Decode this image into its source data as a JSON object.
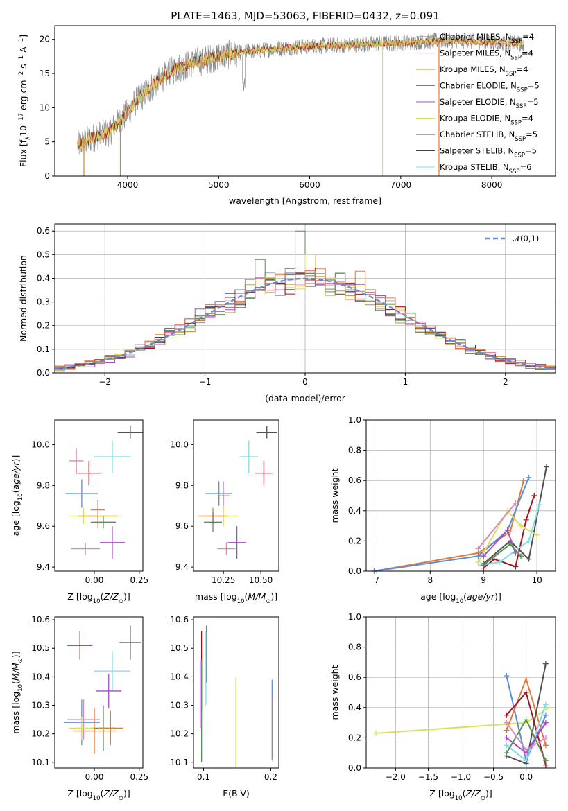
{
  "figure_title": "PLATE=1463, MJD=53063, FIBERID=0432, z=0.091",
  "colors": {
    "Chabrier MILES": "#7f7f7f",
    "Salpeter MILES": "#d98ab5",
    "Kroupa MILES": "#c48a2c",
    "Chabrier ELODIE": "#5a8f5a",
    "Salpeter ELODIE": "#a54ac7",
    "Kroupa ELODIE": "#d8e060",
    "Chabrier STELIB": "#505050",
    "Salpeter STELIB": "#a01420",
    "Kroupa STELIB": "#7fdde6"
  },
  "legend_models": [
    "Chabrier MILES, N_SSP=4",
    "Salpeter MILES, N_SSP=4",
    "Kroupa MILES, N_SSP=4",
    "Chabrier ELODIE, N_SSP=5",
    "Salpeter ELODIE, N_SSP=5",
    "Kroupa ELODIE, N_SSP=4",
    "Chabrier STELIB, N_SSP=5",
    "Salpeter STELIB, N_SSP=5",
    "Kroupa STELIB, N_SSP=6"
  ],
  "chart_data": [
    {
      "type": "line",
      "panel": "spectrum",
      "xlabel": "wavelength [Angstrom, rest frame]",
      "ylabel": "Flux [f_λ 10^-17 erg cm^-2 s^-1 A^-1]",
      "xlim": [
        3200,
        8700
      ],
      "ylim": [
        0,
        22
      ],
      "xticks": [
        4000,
        5000,
        6000,
        7000,
        8000
      ],
      "yticks": [
        0,
        5,
        10,
        15,
        20
      ],
      "legend": [
        "Chabrier MILES, N_SSP=4",
        "Salpeter MILES, N_SSP=4",
        "Kroupa MILES, N_SSP=4",
        "Chabrier ELODIE, N_SSP=5",
        "Salpeter ELODIE, N_SSP=5",
        "Kroupa ELODIE, N_SSP=4",
        "Chabrier STELIB, N_SSP=5",
        "Salpeter STELIB, N_SSP=5",
        "Kroupa STELIB, N_SSP=6"
      ],
      "legend_position": "right",
      "continuum": {
        "x": [
          3450,
          3600,
          3800,
          3950,
          4100,
          4300,
          4500,
          4700,
          5000,
          5300,
          5600,
          6000,
          6500,
          7000,
          7500,
          8000,
          8350
        ],
        "y": [
          4.5,
          5.5,
          6.5,
          8.5,
          11,
          13.5,
          15.5,
          16.5,
          17.5,
          18.2,
          18.6,
          19.0,
          19.2,
          19.5,
          19.8,
          19.6,
          19.3
        ]
      },
      "drops": [
        {
          "x": 3520,
          "color": "#c48a2c"
        },
        {
          "x": 3920,
          "color": "#c48a2c"
        },
        {
          "x": 6800,
          "color": "#d8e060"
        },
        {
          "x": 7420,
          "color": "#e07a3a"
        }
      ]
    },
    {
      "type": "step",
      "panel": "residual_histogram",
      "xlabel": "(data-model)/error",
      "ylabel": "Normed distribution",
      "xlim": [
        -2.5,
        2.5
      ],
      "ylim": [
        0,
        0.63
      ],
      "xticks": [
        -2,
        -1,
        0,
        1,
        2
      ],
      "yticks": [
        0.0,
        0.1,
        0.2,
        0.3,
        0.4,
        0.5,
        0.6
      ],
      "grid": true,
      "reference_curve": {
        "name": "N(0,1)",
        "label": "𝒩(0,1)",
        "mean": 0,
        "sigma": 1,
        "style": "dashed",
        "color": "#5b8ed6"
      },
      "bin_width": 0.1,
      "peaks": [
        {
          "x": -0.05,
          "y": 0.6,
          "color": "#5a8f5a"
        },
        {
          "x": 0.05,
          "y": 0.5,
          "color": "#d8e060"
        },
        {
          "x": 0.55,
          "y": 0.43,
          "color": "#e07a3a"
        },
        {
          "x": -0.45,
          "y": 0.48,
          "color": "#5a8f5a"
        }
      ]
    },
    {
      "type": "errorbar",
      "panel": "Z_vs_age",
      "xlabel": "Z [log10(Z/Z⊙)]",
      "ylabel": "age  [log10(age/yr)]",
      "xlim": [
        -0.22,
        0.27
      ],
      "ylim": [
        9.38,
        10.12
      ],
      "xticks": [
        0.0,
        0.25
      ],
      "yticks": [
        9.4,
        9.6,
        9.8,
        10.0
      ],
      "points": [
        {
          "x": 0.2,
          "y": 10.06,
          "xerr": 0.07,
          "yerr": 0.03,
          "color": "#505050"
        },
        {
          "x": 0.1,
          "y": 9.94,
          "xerr": 0.1,
          "yerr": 0.08,
          "color": "#7fdde6"
        },
        {
          "x": -0.1,
          "y": 9.92,
          "xerr": 0.04,
          "yerr": 0.06,
          "color": "#d98ab5"
        },
        {
          "x": -0.03,
          "y": 9.86,
          "xerr": 0.07,
          "yerr": 0.06,
          "color": "#a01420"
        },
        {
          "x": -0.07,
          "y": 9.76,
          "xerr": 0.09,
          "yerr": 0.07,
          "color": "#5b8ed6"
        },
        {
          "x": 0.02,
          "y": 9.68,
          "xerr": 0.04,
          "yerr": 0.05,
          "color": "#e07a3a"
        },
        {
          "x": -0.06,
          "y": 9.65,
          "xerr": 0.08,
          "yerr": 0.04,
          "color": "#d8e060"
        },
        {
          "x": 0.02,
          "y": 9.65,
          "xerr": 0.11,
          "yerr": 0.06,
          "color": "#c48a2c"
        },
        {
          "x": 0.05,
          "y": 9.62,
          "xerr": 0.07,
          "yerr": 0.03,
          "color": "#5a8f5a"
        },
        {
          "x": 0.1,
          "y": 9.52,
          "xerr": 0.07,
          "yerr": 0.08,
          "color": "#a54ac7"
        },
        {
          "x": -0.05,
          "y": 9.49,
          "xerr": 0.08,
          "yerr": 0.03,
          "color": "#d98ab5"
        }
      ]
    },
    {
      "type": "errorbar",
      "panel": "mass_vs_age",
      "xlabel": "mass [log10(M/M⊙)]",
      "ylabel": "",
      "xlim": [
        10.05,
        10.62
      ],
      "ylim": [
        9.38,
        10.12
      ],
      "xticks": [
        10.25,
        10.5
      ],
      "yticks": [
        9.4,
        9.6,
        9.8,
        10.0
      ],
      "points": [
        {
          "x": 10.54,
          "y": 10.06,
          "xerr": 0.07,
          "yerr": 0.03,
          "color": "#505050"
        },
        {
          "x": 10.42,
          "y": 9.94,
          "xerr": 0.06,
          "yerr": 0.08,
          "color": "#7fdde6"
        },
        {
          "x": 10.52,
          "y": 9.86,
          "xerr": 0.06,
          "yerr": 0.06,
          "color": "#a01420"
        },
        {
          "x": 10.22,
          "y": 9.76,
          "xerr": 0.09,
          "yerr": 0.06,
          "color": "#5b8ed6"
        },
        {
          "x": 10.25,
          "y": 9.75,
          "xerr": 0.04,
          "yerr": 0.07,
          "color": "#d98ab5"
        },
        {
          "x": 10.25,
          "y": 9.65,
          "xerr": 0.1,
          "yerr": 0.05,
          "color": "#d8e060"
        },
        {
          "x": 10.18,
          "y": 9.65,
          "xerr": 0.1,
          "yerr": 0.04,
          "color": "#e07a3a"
        },
        {
          "x": 10.18,
          "y": 9.62,
          "xerr": 0.06,
          "yerr": 0.05,
          "color": "#5a8f5a"
        },
        {
          "x": 10.34,
          "y": 9.52,
          "xerr": 0.06,
          "yerr": 0.08,
          "color": "#a54ac7"
        },
        {
          "x": 10.27,
          "y": 9.49,
          "xerr": 0.06,
          "yerr": 0.03,
          "color": "#d98ab5"
        }
      ]
    },
    {
      "type": "line",
      "panel": "age_vs_mass_weight",
      "xlabel": "age  [log10(age/yr)]",
      "ylabel": "mass weight",
      "xlim": [
        6.8,
        10.35
      ],
      "ylim": [
        0,
        1
      ],
      "xticks": [
        7,
        8,
        9,
        10
      ],
      "yticks": [
        0.0,
        0.2,
        0.4,
        0.6,
        0.8,
        1.0
      ],
      "grid": true,
      "series": [
        {
          "color": "#e07a3a",
          "x": [
            6.95,
            8.9,
            9.5,
            9.75
          ],
          "y": [
            0.0,
            0.12,
            0.26,
            0.6
          ]
        },
        {
          "color": "#5b8ed6",
          "x": [
            6.95,
            8.9,
            9.45,
            9.85
          ],
          "y": [
            0.0,
            0.1,
            0.27,
            0.62
          ]
        },
        {
          "color": "#505050",
          "x": [
            9.0,
            9.5,
            9.85,
            10.18
          ],
          "y": [
            0.05,
            0.2,
            0.08,
            0.69
          ]
        },
        {
          "color": "#a01420",
          "x": [
            9.0,
            9.2,
            9.6,
            9.8,
            9.95
          ],
          "y": [
            0.02,
            0.08,
            0.03,
            0.34,
            0.5
          ]
        },
        {
          "color": "#d8e060",
          "x": [
            8.9,
            9.45,
            9.7,
            10.0
          ],
          "y": [
            0.06,
            0.4,
            0.3,
            0.24
          ]
        },
        {
          "color": "#7fdde6",
          "x": [
            8.95,
            9.3,
            9.85,
            10.05
          ],
          "y": [
            0.04,
            0.06,
            0.2,
            0.44
          ]
        },
        {
          "color": "#a54ac7",
          "x": [
            9.0,
            9.45,
            9.6
          ],
          "y": [
            0.1,
            0.27,
            0.12
          ]
        },
        {
          "color": "#5a8f5a",
          "x": [
            9.0,
            9.5,
            9.7
          ],
          "y": [
            0.04,
            0.18,
            0.1
          ]
        },
        {
          "color": "#d98ab5",
          "x": [
            8.9,
            9.6
          ],
          "y": [
            0.15,
            0.45
          ]
        }
      ]
    },
    {
      "type": "errorbar",
      "panel": "Z_vs_mass",
      "xlabel": "Z [log10(Z/Z⊙)]",
      "ylabel": "mass [log10(M/M⊙)]",
      "xlim": [
        -0.22,
        0.27
      ],
      "ylim": [
        10.08,
        10.61
      ],
      "xticks": [
        0.0,
        0.25
      ],
      "yticks": [
        10.1,
        10.2,
        10.3,
        10.4,
        10.5,
        10.6
      ],
      "points": [
        {
          "x": 0.2,
          "y": 10.52,
          "xerr": 0.06,
          "yerr": 0.06,
          "color": "#505050"
        },
        {
          "x": -0.08,
          "y": 10.51,
          "xerr": 0.07,
          "yerr": 0.05,
          "color": "#a01420"
        },
        {
          "x": 0.1,
          "y": 10.42,
          "xerr": 0.1,
          "yerr": 0.07,
          "color": "#7fdde6"
        },
        {
          "x": 0.08,
          "y": 10.35,
          "xerr": 0.07,
          "yerr": 0.06,
          "color": "#a54ac7"
        },
        {
          "x": -0.06,
          "y": 10.25,
          "xerr": 0.09,
          "yerr": 0.07,
          "color": "#d98ab5"
        },
        {
          "x": -0.07,
          "y": 10.24,
          "xerr": 0.1,
          "yerr": 0.08,
          "color": "#5b8ed6"
        },
        {
          "x": 0.05,
          "y": 10.22,
          "xerr": 0.07,
          "yerr": 0.08,
          "color": "#5a8f5a"
        },
        {
          "x": -0.07,
          "y": 10.22,
          "xerr": 0.07,
          "yerr": 0.04,
          "color": "#d8e060"
        },
        {
          "x": 0.0,
          "y": 10.21,
          "xerr": 0.12,
          "yerr": 0.08,
          "color": "#e07a3a"
        },
        {
          "x": 0.09,
          "y": 10.22,
          "xerr": 0.07,
          "yerr": 0.06,
          "color": "#c48a2c"
        }
      ]
    },
    {
      "type": "errorbar",
      "panel": "EBV_vs_mass",
      "xlabel": "E(B-V)",
      "ylabel": "",
      "xlim": [
        0.085,
        0.212
      ],
      "ylim": [
        10.08,
        10.61
      ],
      "xticks": [
        0.1,
        0.2
      ],
      "yticks": [
        10.1,
        10.2,
        10.3,
        10.4,
        10.5,
        10.6
      ],
      "points": [
        {
          "x": 0.1045,
          "y": 10.48,
          "xerr": 0,
          "yerr": 0.1,
          "color": "#505050"
        },
        {
          "x": 0.1035,
          "y": 10.43,
          "xerr": 0,
          "yerr": 0.13,
          "color": "#7fdde6"
        },
        {
          "x": 0.097,
          "y": 10.42,
          "xerr": 0,
          "yerr": 0.14,
          "color": "#a01420"
        },
        {
          "x": 0.095,
          "y": 10.34,
          "xerr": 0,
          "yerr": 0.12,
          "color": "#a54ac7"
        },
        {
          "x": 0.097,
          "y": 10.28,
          "xerr": 0,
          "yerr": 0.18,
          "color": "#5a8f5a"
        },
        {
          "x": 0.148,
          "y": 10.24,
          "xerr": 0,
          "yerr": 0.16,
          "color": "#d8e060"
        },
        {
          "x": 0.202,
          "y": 10.25,
          "xerr": 0,
          "yerr": 0.14,
          "color": "#5b8ed6"
        },
        {
          "x": 0.203,
          "y": 10.22,
          "xerr": 0,
          "yerr": 0.12,
          "color": "#e07a3a"
        }
      ]
    },
    {
      "type": "line",
      "panel": "Z_vs_mass_weight",
      "xlabel": "Z [log10(Z/Z⊙)]",
      "ylabel": "mass weight",
      "xlim": [
        -2.45,
        0.45
      ],
      "ylim": [
        0,
        1
      ],
      "xticks": [
        -2.0,
        -1.5,
        -1.0,
        -0.5,
        0.0
      ],
      "yticks": [
        0.0,
        0.2,
        0.4,
        0.6,
        0.8,
        1.0
      ],
      "grid": true,
      "series": [
        {
          "color": "#d8e060",
          "x": [
            -2.3,
            0.0,
            0.35
          ],
          "y": [
            0.23,
            0.3,
            0.4
          ]
        },
        {
          "color": "#5b8ed6",
          "x": [
            -0.3,
            0.0,
            0.3
          ],
          "y": [
            0.61,
            0.05,
            0.35
          ]
        },
        {
          "color": "#e07a3a",
          "x": [
            -0.3,
            0.0,
            0.3
          ],
          "y": [
            0.25,
            0.59,
            0.15
          ]
        },
        {
          "color": "#505050",
          "x": [
            -0.3,
            0.0,
            0.3
          ],
          "y": [
            0.08,
            0.03,
            0.69
          ]
        },
        {
          "color": "#a01420",
          "x": [
            -0.3,
            0.0,
            0.3
          ],
          "y": [
            0.35,
            0.5,
            0.02
          ]
        },
        {
          "color": "#7fdde6",
          "x": [
            -0.3,
            0.0,
            0.3
          ],
          "y": [
            0.15,
            0.05,
            0.42
          ]
        },
        {
          "color": "#a54ac7",
          "x": [
            -0.3,
            0.0,
            0.3
          ],
          "y": [
            0.2,
            0.1,
            0.3
          ]
        },
        {
          "color": "#5a8f5a",
          "x": [
            -0.3,
            0.0,
            0.3
          ],
          "y": [
            0.1,
            0.32,
            0.05
          ]
        },
        {
          "color": "#d98ab5",
          "x": [
            -0.3,
            0.0,
            0.3
          ],
          "y": [
            0.3,
            0.12,
            0.2
          ]
        }
      ]
    }
  ]
}
